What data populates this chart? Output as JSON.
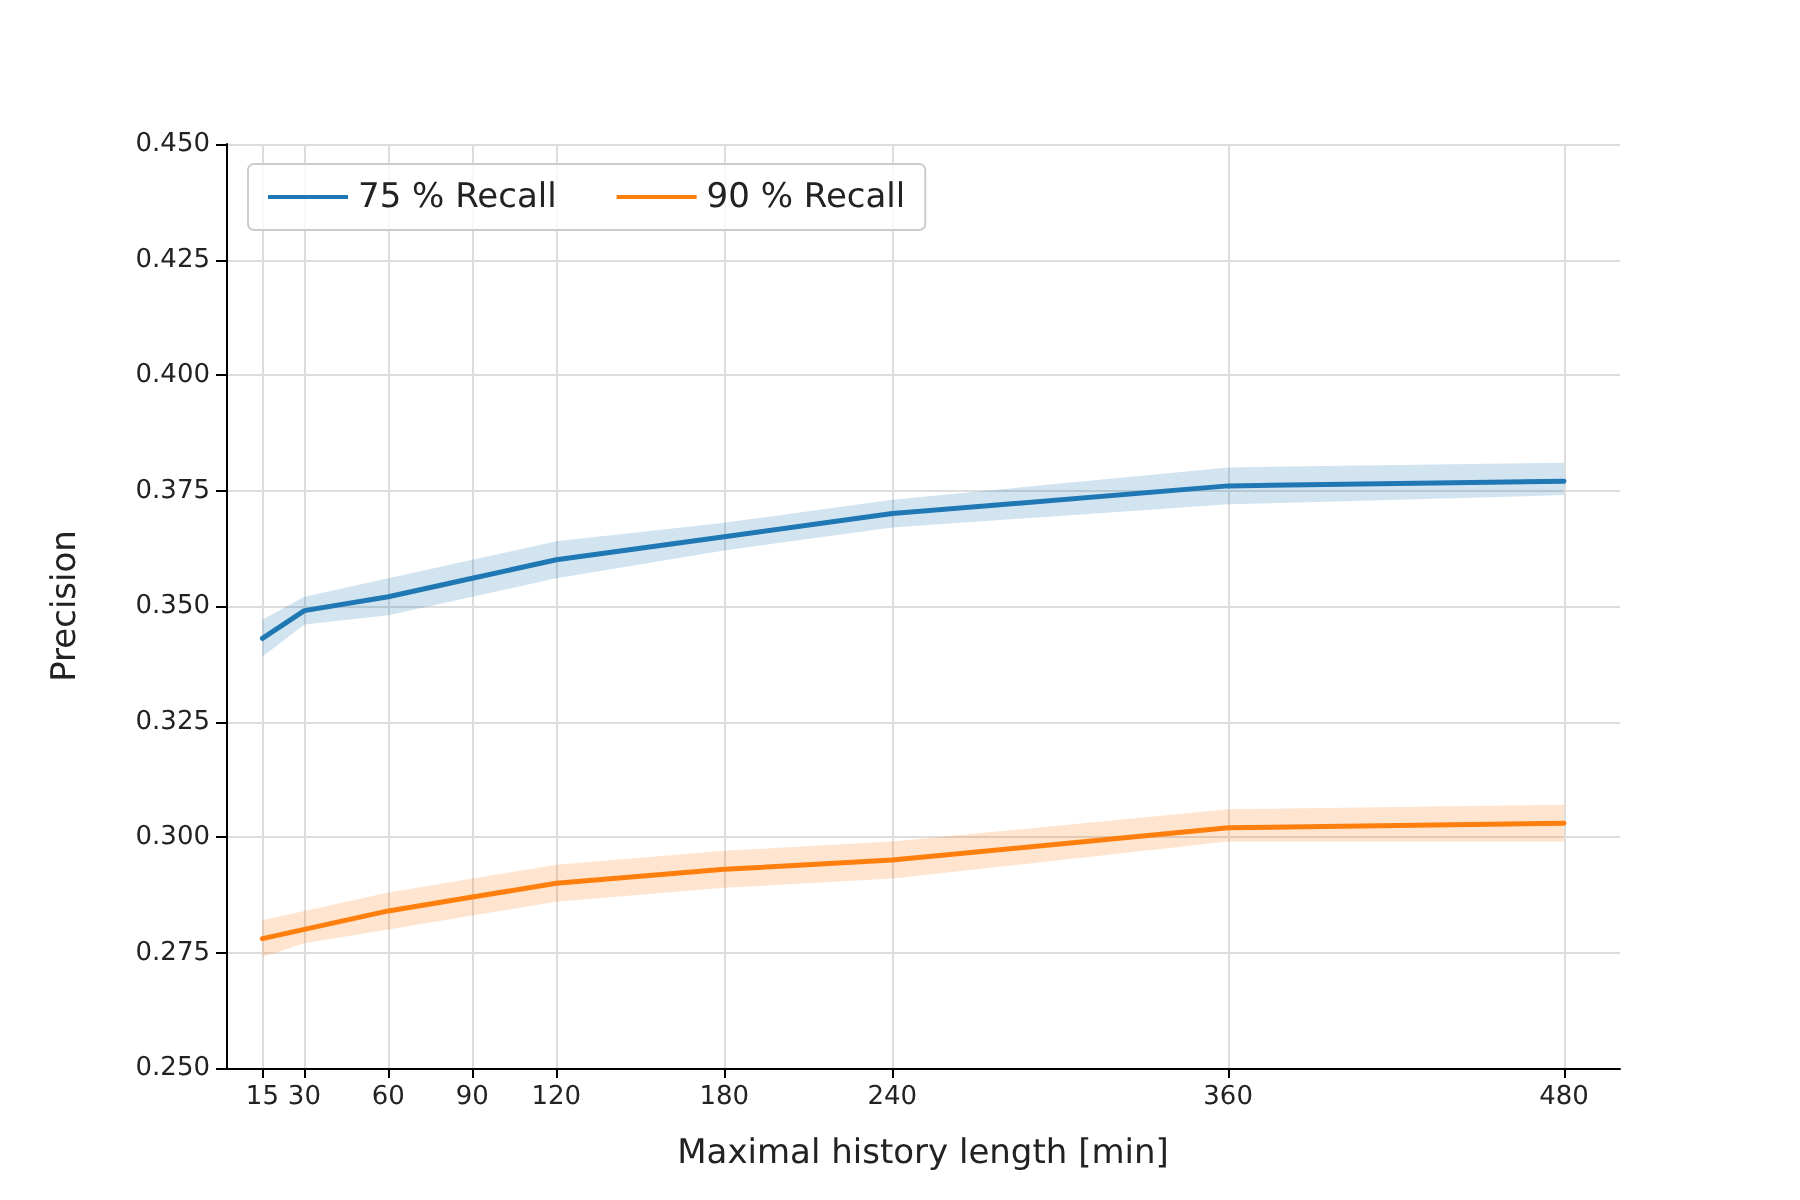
{
  "chart_data": {
    "type": "line",
    "xlabel": "Maximal history length [min]",
    "ylabel": "Precision",
    "x": [
      15,
      30,
      60,
      90,
      120,
      180,
      240,
      360,
      480
    ],
    "series": [
      {
        "name": "75 % Recall",
        "color": "#1f77b4",
        "values": [
          0.343,
          0.349,
          0.352,
          0.356,
          0.36,
          0.365,
          0.37,
          0.376,
          0.377
        ],
        "lower": [
          0.339,
          0.346,
          0.348,
          0.352,
          0.356,
          0.362,
          0.367,
          0.372,
          0.374
        ],
        "upper": [
          0.347,
          0.352,
          0.356,
          0.36,
          0.364,
          0.368,
          0.373,
          0.38,
          0.381
        ]
      },
      {
        "name": "90 % Recall",
        "color": "#ff7f0e",
        "values": [
          0.278,
          0.28,
          0.284,
          0.287,
          0.29,
          0.293,
          0.295,
          0.302,
          0.303
        ],
        "lower": [
          0.274,
          0.277,
          0.28,
          0.283,
          0.286,
          0.289,
          0.291,
          0.299,
          0.299
        ],
        "upper": [
          0.282,
          0.284,
          0.288,
          0.291,
          0.294,
          0.297,
          0.299,
          0.306,
          0.307
        ]
      }
    ],
    "xlim": [
      2,
      500
    ],
    "xticks": [
      15,
      30,
      60,
      90,
      120,
      180,
      240,
      360,
      480
    ],
    "ylim": [
      0.25,
      0.45
    ],
    "yticks": [
      {
        "value": 0.25,
        "label": "0.250"
      },
      0.275,
      {
        "value": 0.3,
        "label": "0.300"
      },
      0.325,
      {
        "value": 0.35,
        "label": "0.350"
      },
      0.375,
      {
        "value": 0.4,
        "label": "0.400"
      },
      0.425,
      {
        "value": 0.45,
        "label": "0.450"
      }
    ],
    "grid": true,
    "legend": "top left",
    "marker": "none",
    "line_style": "solid"
  }
}
